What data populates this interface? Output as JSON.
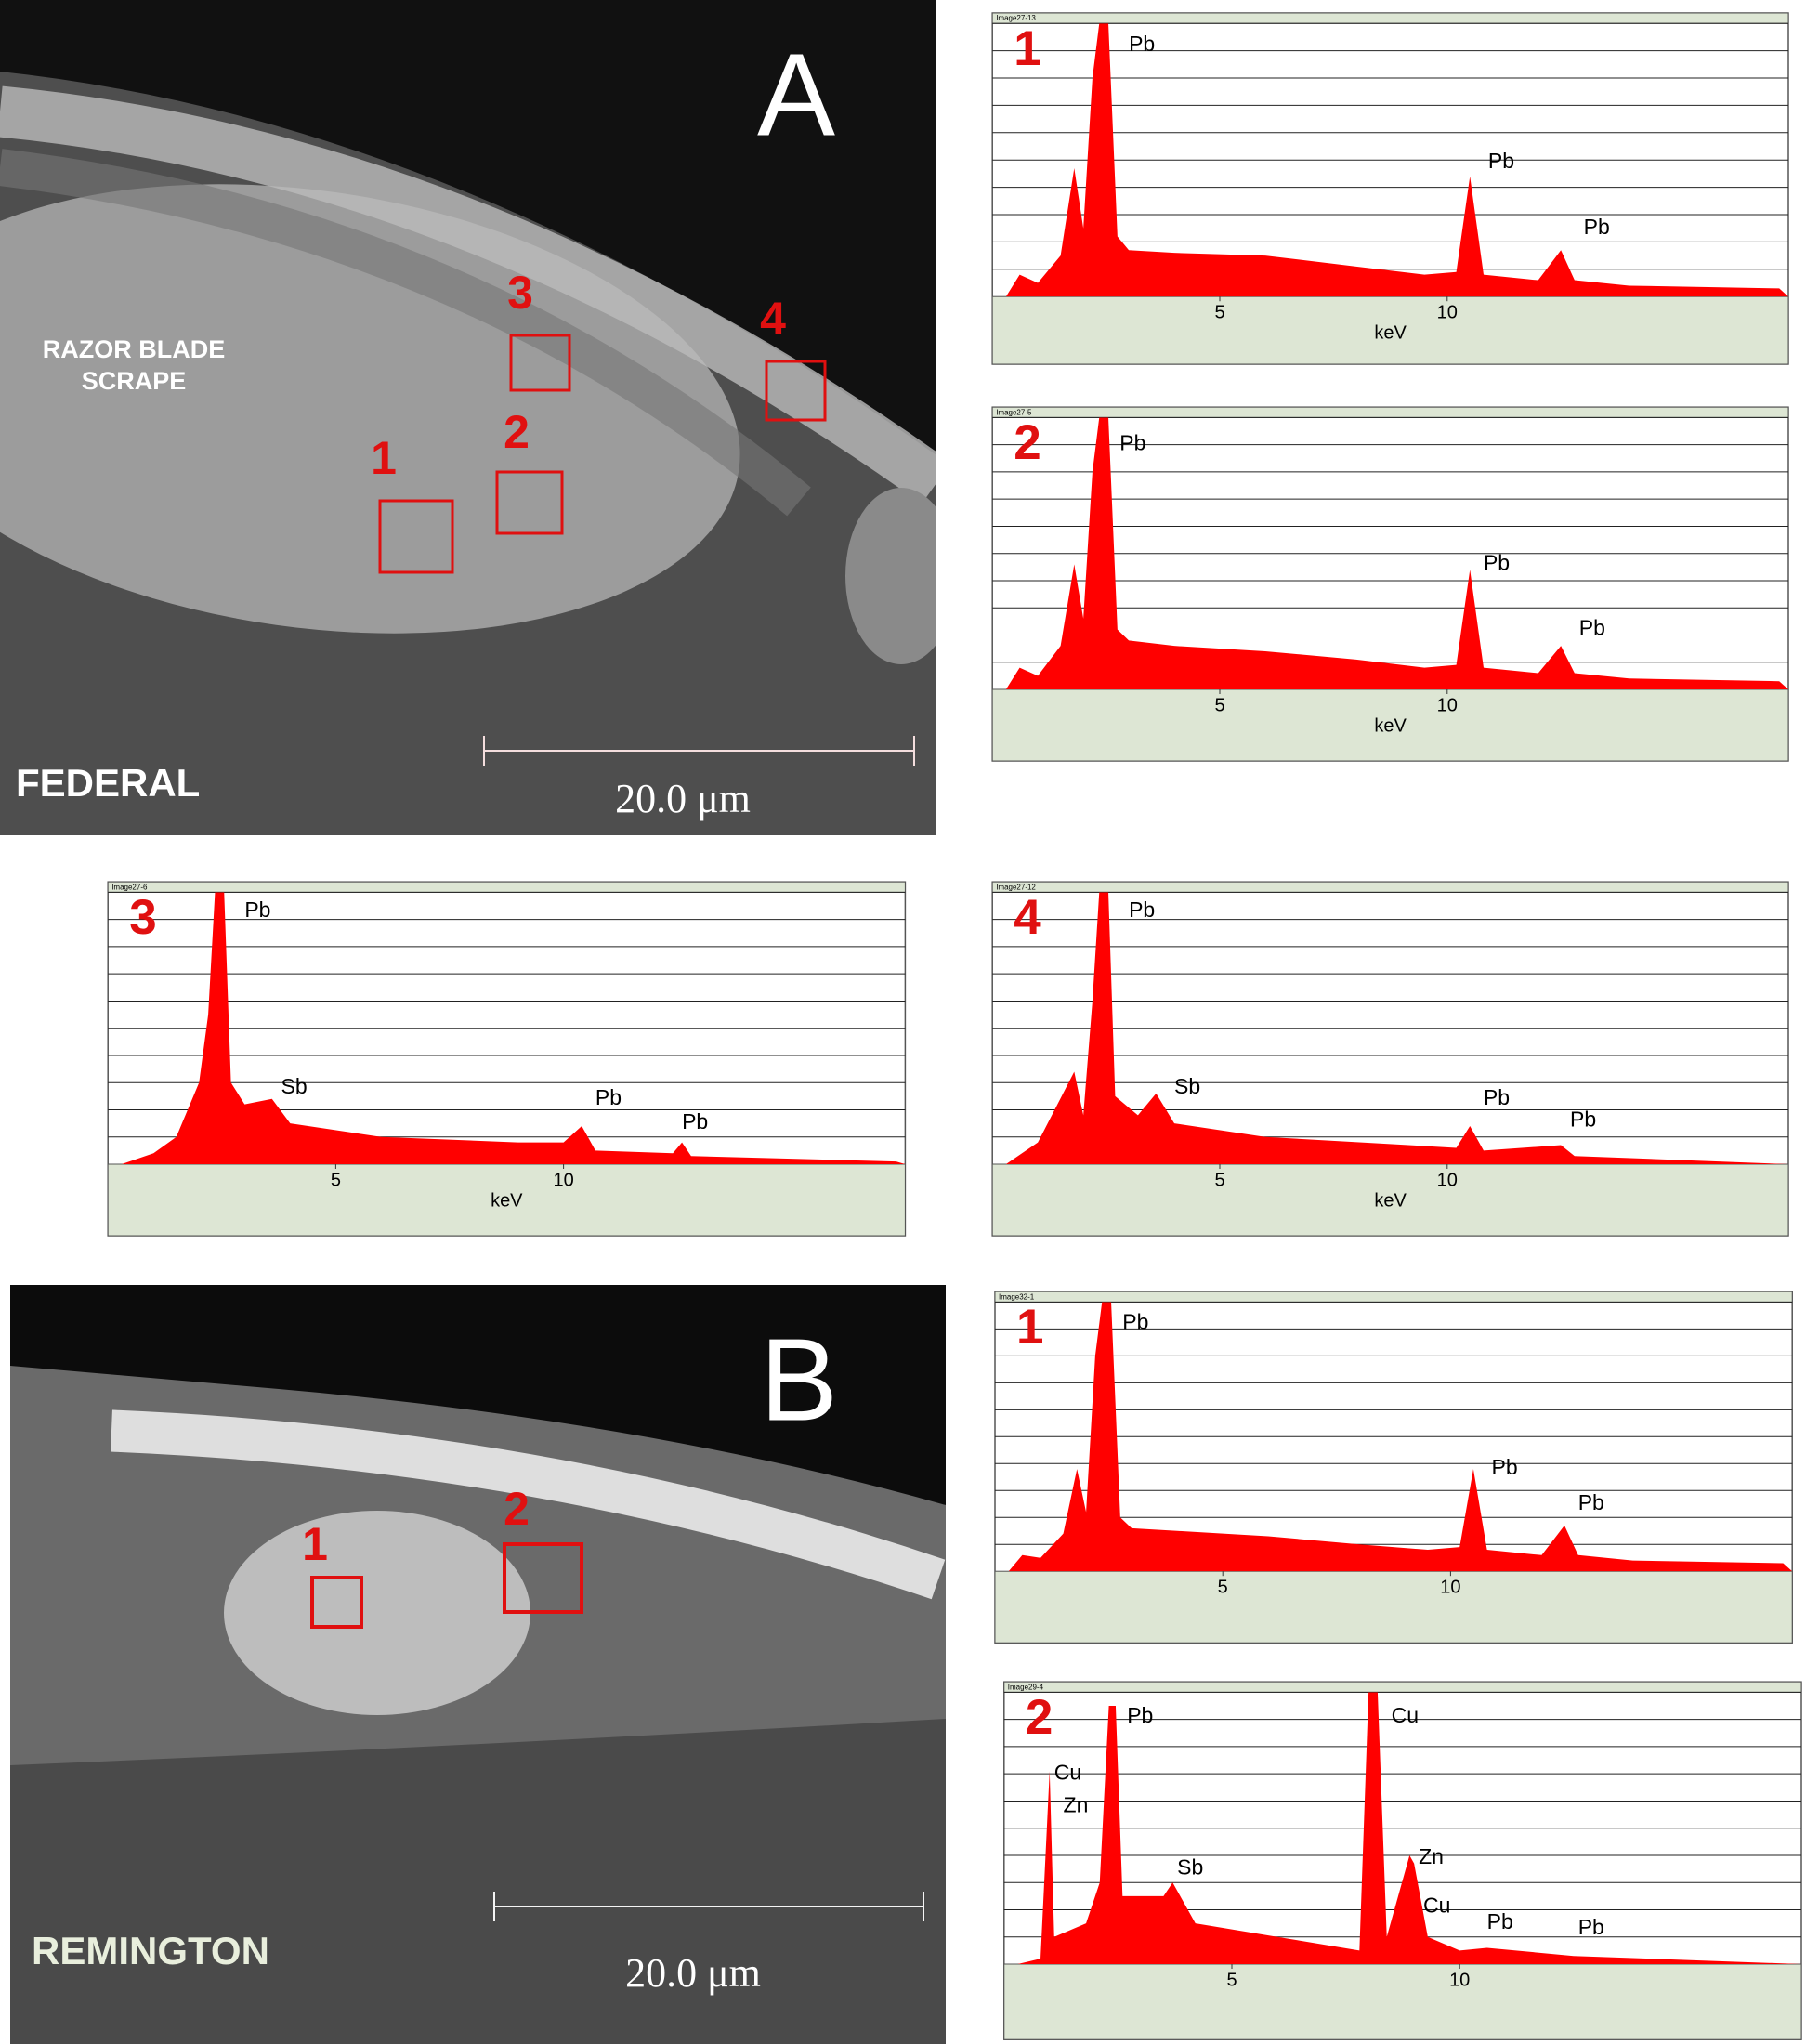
{
  "chart_data": [
    {
      "type": "area",
      "header": "Image27-13",
      "label": "1",
      "color": "#ff0000",
      "xlim": [
        0,
        17.5
      ],
      "xticks": [
        5,
        10
      ],
      "xlabel": "keV",
      "ylim": [
        0,
        10
      ],
      "grid_lines": 10,
      "x": [
        0.3,
        0.6,
        1.0,
        1.5,
        1.8,
        2.0,
        2.2,
        2.35,
        2.55,
        2.75,
        3.0,
        4,
        6,
        8,
        9.5,
        10.2,
        10.5,
        10.8,
        12,
        12.5,
        12.8,
        14,
        17.3,
        17.5
      ],
      "values": [
        0,
        0.8,
        0.5,
        1.5,
        4.7,
        2.5,
        8,
        10,
        10,
        2.2,
        1.7,
        1.6,
        1.5,
        1.1,
        0.8,
        0.9,
        4.4,
        0.8,
        0.6,
        1.7,
        0.6,
        0.4,
        0.3,
        0
      ],
      "peaks": [
        {
          "text": "Pb",
          "x": 3.0,
          "y": 9.2
        },
        {
          "text": "Pb",
          "x": 10.9,
          "y": 4.9
        },
        {
          "text": "Pb",
          "x": 13.0,
          "y": 2.5
        }
      ]
    },
    {
      "type": "area",
      "header": "Image27-5",
      "label": "2",
      "color": "#ff0000",
      "xlim": [
        0,
        17.5
      ],
      "xticks": [
        5,
        10
      ],
      "xlabel": "keV",
      "ylim": [
        0,
        10
      ],
      "grid_lines": 10,
      "x": [
        0.3,
        0.6,
        1.0,
        1.5,
        1.8,
        2.0,
        2.2,
        2.35,
        2.55,
        2.75,
        3.0,
        4,
        6,
        8,
        9.5,
        10.2,
        10.5,
        10.8,
        12,
        12.5,
        12.8,
        14,
        17.3,
        17.5
      ],
      "values": [
        0,
        0.8,
        0.5,
        1.6,
        4.6,
        2.6,
        8,
        10,
        10,
        2.2,
        1.8,
        1.6,
        1.4,
        1.1,
        0.8,
        0.9,
        4.4,
        0.8,
        0.6,
        1.6,
        0.6,
        0.4,
        0.3,
        0
      ],
      "peaks": [
        {
          "text": "Pb",
          "x": 2.8,
          "y": 9.0
        },
        {
          "text": "Pb",
          "x": 10.8,
          "y": 4.6
        },
        {
          "text": "Pb",
          "x": 12.9,
          "y": 2.2
        }
      ]
    },
    {
      "type": "area",
      "header": "Image27-6",
      "label": "3",
      "color": "#ff0000",
      "xlim": [
        0,
        17.5
      ],
      "xticks": [
        5,
        10
      ],
      "xlabel": "keV",
      "ylim": [
        0,
        10
      ],
      "grid_lines": 10,
      "x": [
        0.3,
        1.0,
        1.5,
        2.0,
        2.2,
        2.35,
        2.55,
        2.7,
        3.0,
        3.6,
        4.0,
        6,
        9,
        10.0,
        10.4,
        10.7,
        12.4,
        12.6,
        12.8,
        17.3,
        17.5
      ],
      "values": [
        0,
        0.4,
        1,
        3,
        5.5,
        10,
        10,
        3,
        2.2,
        2.4,
        1.5,
        1,
        0.8,
        0.8,
        1.4,
        0.5,
        0.4,
        0.8,
        0.3,
        0.1,
        0
      ],
      "peaks": [
        {
          "text": "Pb",
          "x": 3.0,
          "y": 9.3
        },
        {
          "text": "Sb",
          "x": 3.8,
          "y": 2.8
        },
        {
          "text": "Pb",
          "x": 10.7,
          "y": 2.4
        },
        {
          "text": "Pb",
          "x": 12.6,
          "y": 1.5
        }
      ]
    },
    {
      "type": "area",
      "header": "Image27-12",
      "label": "4",
      "color": "#ff0000",
      "xlim": [
        0,
        17.5
      ],
      "xticks": [
        5,
        10
      ],
      "xlabel": "keV",
      "ylim": [
        0,
        10
      ],
      "grid_lines": 10,
      "x": [
        0.3,
        1.0,
        1.8,
        2.0,
        2.2,
        2.35,
        2.55,
        2.7,
        3.2,
        3.6,
        4,
        6,
        10.2,
        10.5,
        10.8,
        12.5,
        12.8,
        17.5
      ],
      "values": [
        0,
        0.8,
        3.4,
        1.8,
        6,
        10,
        10,
        2.5,
        1.8,
        2.6,
        1.5,
        1,
        0.6,
        1.4,
        0.5,
        0.7,
        0.3,
        0
      ],
      "peaks": [
        {
          "text": "Pb",
          "x": 3.0,
          "y": 9.3
        },
        {
          "text": "Sb",
          "x": 4.0,
          "y": 2.8
        },
        {
          "text": "Pb",
          "x": 10.8,
          "y": 2.4
        },
        {
          "text": "Pb",
          "x": 12.7,
          "y": 1.6
        }
      ]
    },
    {
      "type": "area",
      "header": "Image32-1",
      "label": "1",
      "color": "#ff0000",
      "xlim": [
        0,
        17.5
      ],
      "xticks": [
        5,
        10
      ],
      "ylim": [
        0,
        10
      ],
      "grid_lines": 10,
      "x": [
        0.3,
        0.6,
        1.0,
        1.5,
        1.8,
        2.0,
        2.2,
        2.35,
        2.55,
        2.75,
        3.0,
        4,
        6,
        8,
        9.5,
        10.2,
        10.5,
        10.8,
        12,
        12.5,
        12.8,
        14,
        17.3,
        17.5
      ],
      "values": [
        0,
        0.6,
        0.5,
        1.4,
        3.8,
        2.2,
        8,
        10,
        10,
        2.0,
        1.6,
        1.5,
        1.3,
        1.0,
        0.8,
        0.9,
        3.8,
        0.8,
        0.6,
        1.7,
        0.6,
        0.4,
        0.3,
        0
      ],
      "peaks": [
        {
          "text": "Pb",
          "x": 2.8,
          "y": 9.2
        },
        {
          "text": "Pb",
          "x": 10.9,
          "y": 3.8
        },
        {
          "text": "Pb",
          "x": 12.8,
          "y": 2.5
        }
      ]
    },
    {
      "type": "area",
      "header": "Image29-4",
      "label": "2",
      "color": "#ff0000",
      "xlim": [
        0,
        17.5
      ],
      "xticks": [
        5,
        10
      ],
      "ylim": [
        0,
        10
      ],
      "grid_lines": 10,
      "x": [
        0.3,
        0.8,
        1.0,
        1.1,
        1.8,
        2.1,
        2.3,
        2.45,
        2.6,
        3.5,
        3.7,
        4.2,
        6,
        7.8,
        8.0,
        8.2,
        8.4,
        8.9,
        9.0,
        9.3,
        10,
        10.6,
        12.5,
        17.5
      ],
      "values": [
        0,
        0.2,
        7.1,
        1,
        1.5,
        3,
        9.5,
        9.5,
        2.5,
        2.5,
        3,
        1.5,
        1,
        0.5,
        10,
        10,
        1,
        4,
        3.7,
        1,
        0.5,
        0.6,
        0.3,
        0
      ],
      "peaks": [
        {
          "text": "Pb",
          "x": 2.7,
          "y": 9.1
        },
        {
          "text": "Cu",
          "x": 8.5,
          "y": 9.1
        },
        {
          "text": "Cu",
          "x": 1.1,
          "y": 7.0
        },
        {
          "text": "Zn",
          "x": 1.3,
          "y": 5.8
        },
        {
          "text": "Sb",
          "x": 3.8,
          "y": 3.5
        },
        {
          "text": "Zn",
          "x": 9.1,
          "y": 3.9
        },
        {
          "text": "Cu",
          "x": 9.2,
          "y": 2.1
        },
        {
          "text": "Pb",
          "x": 10.6,
          "y": 1.5
        },
        {
          "text": "Pb",
          "x": 12.6,
          "y": 1.3
        }
      ]
    }
  ],
  "micrographs": [
    {
      "letter": "A",
      "name": "FEDERAL",
      "annotation": [
        "RAZOR BLADE",
        "SCRAPE"
      ],
      "regions": [
        "1",
        "2",
        "3",
        "4"
      ],
      "scale_bar": "20.0 μm"
    },
    {
      "letter": "B",
      "name": "REMINGTON",
      "regions": [
        "1",
        "2"
      ],
      "scale_bar": "20.0 μm"
    }
  ]
}
